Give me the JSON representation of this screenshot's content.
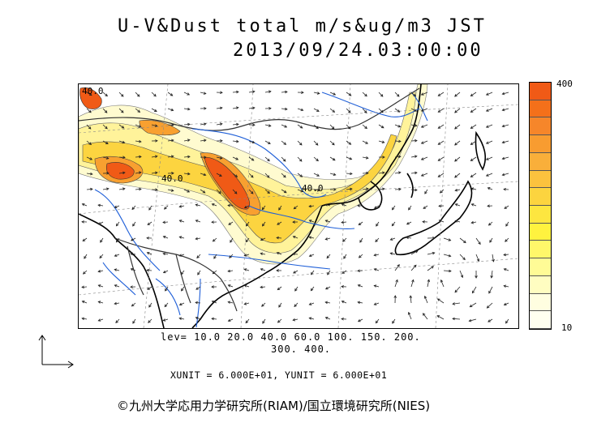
{
  "title": {
    "line1": "U-V&Dust total m/s&ug/m3 JST",
    "line2": "2013/09/24.03:00:00"
  },
  "colorbar": {
    "max_label": "400",
    "min_label": "10",
    "colors": [
      "#f05a16",
      "#f4701a",
      "#f6862a",
      "#f89c30",
      "#f9af3a",
      "#fbc23e",
      "#fcd43f",
      "#fde640",
      "#fff23f",
      "#fff76a",
      "#fffb96",
      "#fffdc1",
      "#fffee0",
      "#fffff0"
    ]
  },
  "contour_labels": [
    "40.0",
    "40.0",
    "40.0"
  ],
  "levels": {
    "line1": "lev= 10.0 20.0 40.0 60.0 100. 150. 200.",
    "line2": "300. 400."
  },
  "units": "XUNIT = 6.000E+01, YUNIT = 6.000E+01",
  "copyright": "©九州大学応用力学研究所(RIAM)/国立環境研究所(NIES)",
  "colors": {
    "coastline": "#000000",
    "rivers": "#1f5fd8",
    "borders": "#555555",
    "wind_vectors": "#222222"
  }
}
